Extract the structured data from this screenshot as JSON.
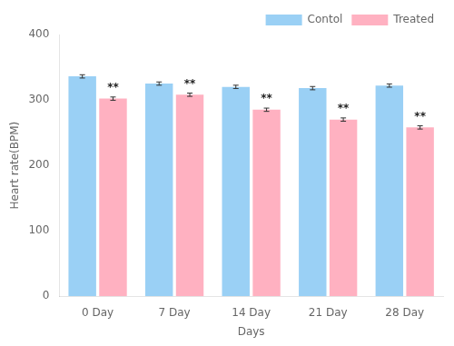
{
  "chart_data": {
    "type": "bar",
    "xlabel": "Days",
    "ylabel": "Heart rate(BPM)",
    "categories": [
      "0 Day",
      "7 Day",
      "14 Day",
      "21 Day",
      "28 Day"
    ],
    "series": [
      {
        "name": "Contol",
        "values": [
          336,
          325,
          320,
          318,
          322
        ],
        "errors": [
          2.5,
          2.5,
          2.5,
          2.5,
          2.5
        ]
      },
      {
        "name": "Treated",
        "values": [
          302,
          308,
          285,
          270,
          258
        ],
        "errors": [
          2.5,
          2.5,
          2.5,
          2.5,
          2.5
        ]
      }
    ],
    "annotations": [
      {
        "series": "Treated",
        "category": "0 Day",
        "text": "**"
      },
      {
        "series": "Treated",
        "category": "7 Day",
        "text": "**"
      },
      {
        "series": "Treated",
        "category": "14 Day",
        "text": "**"
      },
      {
        "series": "Treated",
        "category": "21 Day",
        "text": "**"
      },
      {
        "series": "Treated",
        "category": "28 Day",
        "text": "**"
      }
    ],
    "ylim": [
      0,
      400
    ],
    "yticks": [
      0,
      100,
      200,
      300,
      400
    ],
    "grid": false,
    "legend": "upper right"
  }
}
